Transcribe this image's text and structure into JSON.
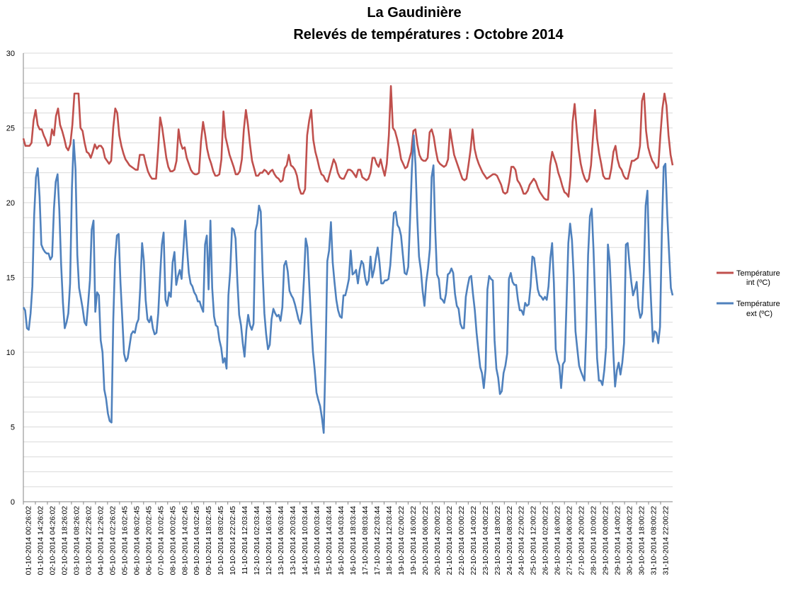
{
  "chart_data": {
    "type": "line",
    "title": "La Gaudinière",
    "subtitle": "Relevés de températures :  Octobre 2014",
    "ylim": [
      0,
      30
    ],
    "yticks": [
      0,
      5,
      10,
      15,
      20,
      25,
      30
    ],
    "grid": "horizontal every 1 unit",
    "legend_position": "right",
    "x_tick_labels": [
      "01-10-2014 00:26:02",
      "01-10-2014 14:26:02",
      "02-10-2014 04:26:02",
      "02-10-2014 18:26:02",
      "03-10-2014 08:26:02",
      "03-10-2014 22:26:02",
      "04-10-2014 12:26:02",
      "05-10-2014 02:26:02",
      "05-10-2014 16:02:45",
      "06-10-2014 06:02:45",
      "06-10-2014 20:02:45",
      "07-10-2014 10:02:45",
      "08-10-2014 00:02:45",
      "08-10-2014 14:02:45",
      "09-10-2014 04:02:45",
      "09-10-2014 18:02:45",
      "10-10-2014 08:02:45",
      "10-10-2014 22:02:45",
      "11-10-2014 12:03:44",
      "12-10-2014 02:03:44",
      "12-10-2014 16:03:44",
      "13-10-2014 06:03:44",
      "13-10-2014 20:03:44",
      "14-10-2014 10:03:44",
      "15-10-2014 00:03:44",
      "15-10-2014 14:03:44",
      "16-10-2014 04:03:44",
      "16-10-2014 18:03:44",
      "17-10-2014 08:03:44",
      "17-10-2014 22:03:44",
      "18-10-2014 12:03:44",
      "19-10-2014 02:00:22",
      "19-10-2014 16:00:22",
      "20-10-2014 06:00:22",
      "20-10-2014 20:00:22",
      "21-10-2014 10:00:22",
      "22-10-2014 00:00:22",
      "22-10-2014 14:00:22",
      "23-10-2014 04:00:22",
      "23-10-2014 18:00:22",
      "24-10-2014 08:00:22",
      "24-10-2014 22:00:22",
      "25-10-2014 12:00:22",
      "26-10-2014 02:00:22",
      "26-10-2014 16:00:22",
      "27-10-2014 06:00:22",
      "27-10-2014 20:00:22",
      "28-10-2014 10:00:22",
      "29-10-2014 00:00:22",
      "29-10-2014 14:00:22",
      "30-10-2014 04:00:22",
      "30-10-2014 18:00:22",
      "31-10-2014 08:00:22",
      "31-10-2014 22:00:22"
    ],
    "series": [
      {
        "name": "Température int (ºC)",
        "color": "#c0504d",
        "values": [
          24.3,
          23.8,
          23.8,
          23.8,
          24.0,
          25.5,
          26.2,
          25.2,
          24.9,
          24.9,
          24.5,
          24.2,
          23.8,
          23.9,
          24.9,
          24.5,
          25.8,
          26.3,
          25.2,
          24.8,
          24.3,
          23.7,
          23.5,
          23.9,
          25.2,
          27.3,
          27.3,
          27.3,
          25.0,
          24.8,
          24.0,
          23.4,
          23.3,
          23.0,
          23.4,
          23.9,
          23.6,
          23.8,
          23.8,
          23.6,
          23.0,
          22.8,
          22.6,
          22.8,
          25.0,
          26.3,
          26.0,
          24.5,
          23.8,
          23.3,
          22.9,
          22.7,
          22.5,
          22.4,
          22.3,
          22.2,
          22.2,
          23.2,
          23.2,
          23.2,
          22.6,
          22.1,
          21.8,
          21.6,
          21.6,
          21.6,
          23.5,
          25.7,
          25.0,
          24.0,
          23.0,
          22.4,
          22.1,
          22.1,
          22.2,
          22.8,
          24.9,
          24.0,
          23.6,
          23.7,
          23.0,
          22.6,
          22.2,
          22.0,
          21.9,
          21.9,
          22.0,
          24.1,
          25.4,
          24.6,
          23.6,
          23.0,
          22.6,
          22.1,
          21.8,
          21.8,
          21.9,
          22.9,
          26.1,
          24.4,
          23.8,
          23.2,
          22.8,
          22.4,
          21.9,
          21.9,
          22.1,
          22.9,
          24.9,
          26.2,
          25.2,
          23.9,
          22.8,
          22.3,
          21.8,
          21.8,
          22.0,
          22.0,
          22.2,
          22.1,
          21.9,
          22.1,
          22.2,
          21.9,
          21.7,
          21.6,
          21.4,
          21.5,
          22.3,
          22.5,
          23.2,
          22.5,
          22.4,
          22.2,
          21.8,
          21.0,
          20.6,
          20.6,
          20.9,
          24.5,
          25.5,
          26.2,
          24.2,
          23.4,
          22.9,
          22.3,
          21.9,
          21.8,
          21.5,
          21.4,
          21.9,
          22.4,
          22.9,
          22.6,
          22.0,
          21.7,
          21.6,
          21.6,
          21.9,
          22.2,
          22.2,
          22.1,
          21.9,
          21.7,
          22.2,
          22.2,
          21.7,
          21.6,
          21.5,
          21.6,
          22.0,
          23.0,
          23.0,
          22.6,
          22.4,
          22.9,
          22.3,
          21.8,
          22.6,
          24.5,
          27.8,
          25.0,
          24.8,
          24.3,
          23.7,
          22.9,
          22.6,
          22.3,
          22.4,
          22.9,
          23.4,
          24.8,
          24.9,
          23.9,
          23.2,
          22.9,
          22.8,
          22.8,
          23.0,
          24.7,
          24.9,
          24.4,
          23.5,
          22.8,
          22.6,
          22.5,
          22.4,
          22.5,
          22.9,
          24.9,
          24.0,
          23.2,
          22.8,
          22.4,
          22.0,
          21.6,
          21.5,
          21.6,
          22.5,
          23.5,
          24.9,
          23.6,
          23.0,
          22.6,
          22.3,
          22.0,
          21.8,
          21.6,
          21.7,
          21.8,
          21.9,
          21.9,
          21.8,
          21.5,
          21.2,
          20.7,
          20.6,
          20.7,
          21.4,
          22.4,
          22.4,
          22.2,
          21.5,
          21.3,
          21.0,
          20.6,
          20.6,
          20.8,
          21.2,
          21.4,
          21.6,
          21.4,
          21.0,
          20.7,
          20.5,
          20.3,
          20.2,
          20.2,
          22.5,
          23.4,
          23.0,
          22.6,
          22.0,
          21.6,
          21.1,
          20.7,
          20.6,
          20.4,
          21.8,
          25.4,
          26.6,
          24.9,
          23.5,
          22.6,
          22.0,
          21.6,
          21.4,
          21.6,
          22.5,
          24.4,
          26.2,
          24.3,
          23.3,
          22.6,
          21.8,
          21.6,
          21.6,
          21.6,
          22.3,
          23.4,
          23.8,
          22.9,
          22.4,
          22.2,
          21.8,
          21.6,
          21.6,
          22.2,
          22.8,
          22.8,
          22.9,
          23.0,
          23.8,
          26.8,
          27.3,
          24.8,
          23.7,
          23.2,
          22.8,
          22.6,
          22.3,
          22.4,
          24.5,
          26.3,
          27.3,
          26.5,
          24.5,
          23.2,
          22.5
        ]
      },
      {
        "name": "Température ext (ºC)",
        "color": "#4f81bd",
        "values": [
          13.0,
          12.8,
          11.6,
          11.5,
          12.6,
          14.4,
          19.1,
          21.7,
          22.3,
          20.4,
          17.2,
          16.9,
          16.7,
          16.6,
          16.6,
          16.2,
          16.4,
          19.6,
          21.4,
          21.9,
          19.5,
          15.9,
          13.3,
          11.6,
          12.0,
          12.6,
          14.6,
          21.0,
          24.2,
          22.2,
          16.5,
          14.3,
          13.6,
          12.9,
          12.0,
          11.8,
          13.2,
          14.8,
          18.2,
          18.8,
          12.7,
          14.0,
          13.8,
          10.8,
          10.0,
          7.5,
          6.9,
          5.9,
          5.4,
          5.3,
          12.2,
          16.2,
          17.8,
          17.9,
          14.6,
          12.3,
          9.9,
          9.4,
          9.6,
          10.4,
          11.2,
          11.4,
          11.3,
          11.9,
          12.2,
          14.3,
          17.3,
          16.1,
          13.5,
          12.2,
          12.0,
          12.4,
          11.6,
          11.2,
          11.3,
          12.6,
          15.1,
          17.2,
          18.0,
          13.5,
          13.1,
          14.0,
          13.7,
          16.0,
          16.7,
          14.5,
          15.1,
          15.5,
          14.9,
          16.9,
          18.8,
          16.9,
          15.3,
          14.6,
          14.4,
          14.0,
          13.8,
          13.4,
          13.4,
          13.0,
          12.7,
          17.2,
          17.8,
          14.2,
          18.8,
          14.3,
          12.4,
          11.8,
          11.7,
          10.8,
          10.3,
          9.3,
          9.6,
          8.9,
          13.8,
          15.4,
          18.3,
          18.2,
          17.6,
          14.7,
          12.5,
          11.8,
          10.6,
          9.7,
          11.5,
          12.5,
          11.8,
          11.5,
          11.9,
          18.1,
          18.6,
          19.8,
          19.4,
          15.5,
          12.6,
          11.2,
          10.2,
          10.5,
          12.2,
          12.9,
          12.6,
          12.4,
          12.5,
          12.1,
          13.0,
          15.8,
          16.1,
          15.4,
          14.1,
          13.8,
          13.6,
          13.2,
          12.7,
          12.2,
          11.9,
          12.7,
          14.9,
          17.6,
          17.0,
          14.4,
          12.1,
          10.0,
          8.8,
          7.3,
          6.8,
          6.4,
          5.6,
          4.6,
          9.5,
          16.1,
          16.8,
          18.7,
          16.0,
          14.7,
          13.5,
          12.8,
          12.4,
          12.3,
          13.8,
          13.8,
          14.3,
          14.9,
          16.8,
          15.2,
          15.3,
          15.5,
          14.6,
          15.5,
          16.1,
          15.9,
          15.0,
          14.5,
          14.8,
          16.4,
          15.0,
          15.5,
          16.3,
          17.0,
          16.0,
          14.6,
          14.6,
          14.8,
          14.8,
          14.9,
          15.8,
          17.5,
          19.3,
          19.4,
          18.5,
          18.3,
          17.8,
          16.5,
          15.3,
          15.2,
          15.7,
          18.8,
          22.2,
          24.5,
          22.6,
          19.0,
          16.4,
          15.5,
          14.1,
          13.1,
          14.7,
          15.6,
          16.9,
          21.7,
          22.5,
          18.2,
          15.2,
          14.9,
          13.6,
          13.5,
          13.3,
          13.9,
          15.2,
          15.3,
          15.6,
          15.3,
          13.9,
          13.1,
          12.9,
          11.9,
          11.6,
          11.6,
          13.7,
          14.4,
          15.0,
          15.1,
          13.9,
          12.8,
          11.3,
          10.1,
          9.0,
          8.6,
          7.6,
          8.9,
          14.2,
          15.1,
          14.9,
          14.8,
          10.8,
          8.9,
          8.3,
          7.2,
          7.4,
          8.6,
          9.1,
          9.9,
          14.9,
          15.3,
          14.7,
          14.5,
          14.5,
          13.5,
          12.8,
          12.8,
          12.5,
          13.3,
          13.1,
          13.2,
          14.4,
          16.4,
          16.3,
          15.3,
          14.2,
          13.8,
          13.7,
          13.5,
          13.7,
          13.5,
          14.4,
          16.3,
          17.3,
          14.6,
          10.2,
          9.5,
          9.1,
          7.6,
          9.2,
          9.4,
          13.2,
          17.3,
          18.6,
          17.5,
          15.1,
          11.4,
          10.2,
          9.1,
          8.7,
          8.4,
          8.1,
          11.5,
          16.5,
          19.1,
          19.6,
          16.9,
          13.2,
          9.6,
          8.1,
          8.1,
          7.8,
          8.8,
          10.3,
          17.2,
          16.1,
          13.4,
          10.0,
          7.7,
          8.8,
          9.3,
          8.5,
          9.3,
          10.6,
          17.2,
          17.3,
          15.9,
          14.7,
          13.8,
          14.2,
          14.7,
          13.0,
          12.3,
          12.6,
          15.5,
          19.8,
          20.8,
          16.2,
          13.4,
          10.7,
          11.4,
          11.3,
          10.6,
          11.7,
          18.0,
          22.4,
          22.6,
          19.2,
          16.7,
          14.3,
          13.8
        ]
      }
    ]
  }
}
